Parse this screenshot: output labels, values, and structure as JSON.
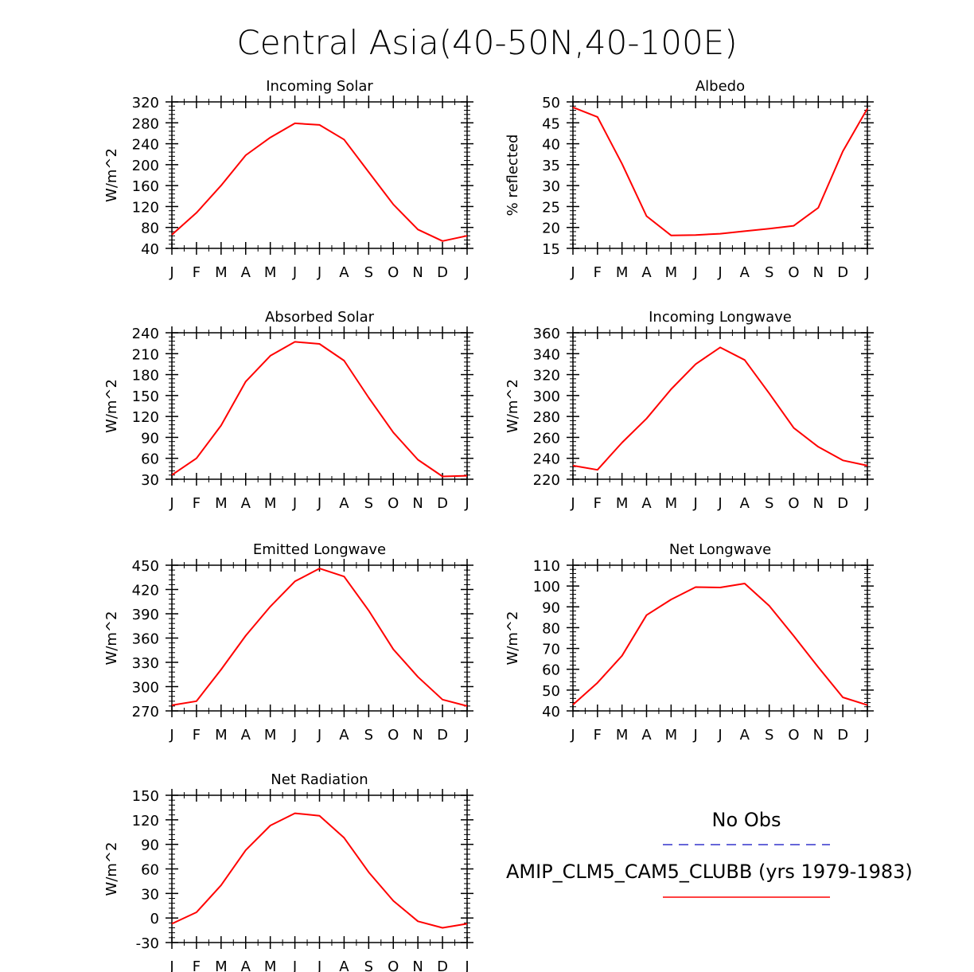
{
  "figure": {
    "title": "Central Asia(40-50N,40-100E)",
    "legend": {
      "obs_label": "No Obs",
      "obs_color": "#3333cc",
      "model_label": "AMIP_CLM5_CAM5_CLUBB (yrs 1979-1983)",
      "model_color": "#ff0000"
    }
  },
  "chart_data": [
    {
      "type": "line",
      "title": "Incoming Solar",
      "ylabel": "W/m^2",
      "categories": [
        "J",
        "F",
        "M",
        "A",
        "M",
        "J",
        "J",
        "A",
        "S",
        "O",
        "N",
        "D",
        "J"
      ],
      "ylim": [
        40,
        320
      ],
      "yticks": [
        40,
        80,
        120,
        160,
        200,
        240,
        280,
        320
      ],
      "series": [
        {
          "name": "AMIP_CLM5_CAM5_CLUBB",
          "values": [
            66,
            108,
            160,
            218,
            252,
            279,
            276,
            248,
            186,
            124,
            76,
            54,
            64
          ]
        }
      ]
    },
    {
      "type": "line",
      "title": "Albedo",
      "ylabel": "% reflected",
      "categories": [
        "J",
        "F",
        "M",
        "A",
        "M",
        "J",
        "J",
        "A",
        "S",
        "O",
        "N",
        "D",
        "J"
      ],
      "ylim": [
        15,
        50
      ],
      "yticks": [
        15,
        20,
        25,
        30,
        35,
        40,
        45,
        50
      ],
      "series": [
        {
          "name": "AMIP_CLM5_CAM5_CLUBB",
          "values": [
            48.7,
            46.4,
            35.2,
            22.7,
            18.1,
            18.2,
            18.5,
            19.1,
            19.7,
            20.4,
            24.7,
            38.2,
            48.4
          ]
        }
      ]
    },
    {
      "type": "line",
      "title": "Absorbed Solar",
      "ylabel": "W/m^2",
      "categories": [
        "J",
        "F",
        "M",
        "A",
        "M",
        "J",
        "J",
        "A",
        "S",
        "O",
        "N",
        "D",
        "J"
      ],
      "ylim": [
        30,
        240
      ],
      "yticks": [
        30,
        60,
        90,
        120,
        150,
        180,
        210,
        240
      ],
      "series": [
        {
          "name": "AMIP_CLM5_CAM5_CLUBB",
          "values": [
            36,
            60,
            107,
            170,
            207,
            227,
            224,
            200,
            147,
            97,
            58,
            34,
            35
          ]
        }
      ]
    },
    {
      "type": "line",
      "title": "Incoming Longwave",
      "ylabel": "W/m^2",
      "categories": [
        "J",
        "F",
        "M",
        "A",
        "M",
        "J",
        "J",
        "A",
        "S",
        "O",
        "N",
        "D",
        "J"
      ],
      "ylim": [
        220,
        360
      ],
      "yticks": [
        220,
        240,
        260,
        280,
        300,
        320,
        340,
        360
      ],
      "series": [
        {
          "name": "AMIP_CLM5_CAM5_CLUBB",
          "values": [
            233,
            229,
            255,
            278,
            306,
            330,
            346,
            334,
            302,
            269,
            251,
            238,
            233
          ]
        }
      ]
    },
    {
      "type": "line",
      "title": "Emitted Longwave",
      "ylabel": "W/m^2",
      "categories": [
        "J",
        "F",
        "M",
        "A",
        "M",
        "J",
        "J",
        "A",
        "S",
        "O",
        "N",
        "D",
        "J"
      ],
      "ylim": [
        270,
        450
      ],
      "yticks": [
        270,
        300,
        330,
        360,
        390,
        420,
        450
      ],
      "series": [
        {
          "name": "AMIP_CLM5_CAM5_CLUBB",
          "values": [
            277,
            282,
            321,
            363,
            399,
            430,
            446,
            436,
            394,
            346,
            312,
            284,
            276
          ]
        }
      ]
    },
    {
      "type": "line",
      "title": "Net Longwave",
      "ylabel": "W/m^2",
      "categories": [
        "J",
        "F",
        "M",
        "A",
        "M",
        "J",
        "J",
        "A",
        "S",
        "O",
        "N",
        "D",
        "J"
      ],
      "ylim": [
        40,
        110
      ],
      "yticks": [
        40,
        50,
        60,
        70,
        80,
        90,
        100,
        110
      ],
      "series": [
        {
          "name": "AMIP_CLM5_CAM5_CLUBB",
          "values": [
            43,
            53.5,
            66.5,
            86,
            93.5,
            99.5,
            99.3,
            101.2,
            90.5,
            76,
            61,
            46.5,
            42.8
          ]
        }
      ]
    },
    {
      "type": "line",
      "title": "Net Radiation",
      "ylabel": "W/m^2",
      "categories": [
        "J",
        "F",
        "M",
        "A",
        "M",
        "J",
        "J",
        "A",
        "S",
        "O",
        "N",
        "D",
        "J"
      ],
      "ylim": [
        -30,
        150
      ],
      "yticks": [
        -30,
        0,
        30,
        60,
        90,
        120,
        150
      ],
      "series": [
        {
          "name": "AMIP_CLM5_CAM5_CLUBB",
          "values": [
            -7,
            7,
            40,
            83,
            113,
            128,
            125,
            98,
            56,
            21,
            -4,
            -12,
            -7
          ]
        }
      ]
    }
  ]
}
